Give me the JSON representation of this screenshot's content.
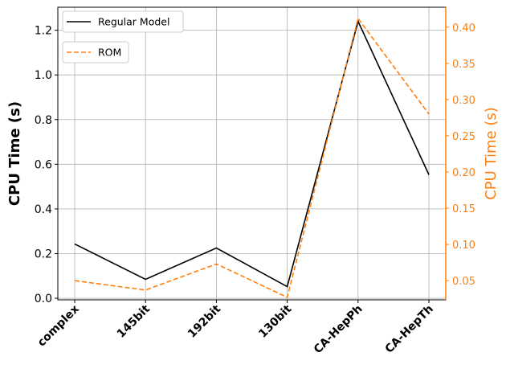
{
  "chart_data": {
    "type": "line",
    "categories": [
      "complex",
      "145bit",
      "192bit",
      "130bit",
      "CA-HepPh",
      "CA-HepTh"
    ],
    "series": [
      {
        "name": "Regular Model",
        "axis": "left",
        "color": "#000000",
        "style": "solid",
        "values": [
          0.243,
          0.085,
          0.225,
          0.052,
          1.24,
          0.553
        ]
      },
      {
        "name": "ROM",
        "axis": "right",
        "color": "#ff7f0e",
        "style": "dashed",
        "values": [
          0.05,
          0.037,
          0.073,
          0.027,
          0.412,
          0.28
        ]
      }
    ],
    "ylabel": "CPU Time (s)",
    "ylabel_right": "CPU Time (s)",
    "ylim": [
      -0.007,
      1.303
    ],
    "ylim_right": [
      0.0235,
      0.4275
    ],
    "yticks": [
      "0.0",
      "0.2",
      "0.4",
      "0.6",
      "0.8",
      "1.0",
      "1.2"
    ],
    "yticks_right": [
      "0.05",
      "0.10",
      "0.15",
      "0.20",
      "0.25",
      "0.30",
      "0.35",
      "0.40"
    ],
    "grid": true,
    "legend_placement": "top-left",
    "legend_entries": [
      "Regular Model",
      "ROM"
    ]
  }
}
